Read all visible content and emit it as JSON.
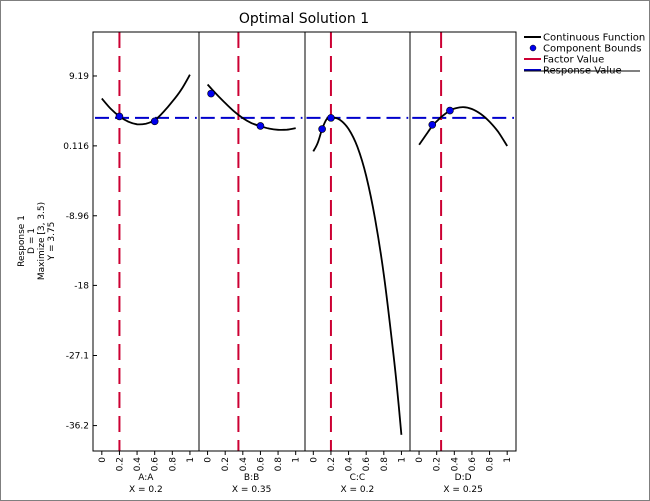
{
  "chart_data": {
    "type": "line",
    "title": "Optimal Solution 1",
    "ylabel_lines": [
      "Response 1",
      "D = 1",
      "Maximize [3, 3.5)",
      "Y = 3.75"
    ],
    "y_ticks": [
      9.19,
      0.116,
      -8.96,
      -18,
      -27.1,
      -36.2
    ],
    "y_tick_labels": [
      "9.19",
      "0.116",
      "-8.96",
      "-18",
      "-27.1",
      "-36.2"
    ],
    "ylim": [
      -39.5,
      14.9
    ],
    "x_ticks": [
      0,
      0.2,
      0.4,
      0.6,
      0.8,
      1
    ],
    "x_tick_labels": [
      "0",
      "0.2",
      "0.4",
      "0.6",
      "0.8",
      "1"
    ],
    "xlim": [
      -0.1,
      1.1
    ],
    "response_value": 3.75,
    "legend": [
      "Continuous Function",
      "Component Bounds",
      "Factor Value",
      "Response Value"
    ],
    "colors": {
      "function": "#000000",
      "bounds": "#0000ee",
      "factor": "#cc0033",
      "response": "#0000cc"
    },
    "panels": [
      {
        "name": "A:A",
        "x_label": "X = 0.2",
        "factor_value": 0.2,
        "curve_x": [
          0.0,
          0.1,
          0.2,
          0.3,
          0.4,
          0.5,
          0.6,
          0.7,
          0.8,
          0.9,
          1.0
        ],
        "curve_y": [
          6.26,
          4.95,
          3.94,
          3.26,
          2.92,
          3.0,
          3.44,
          4.52,
          5.86,
          7.38,
          9.36
        ],
        "bounds": [
          {
            "x": 0.2,
            "y": 3.94
          },
          {
            "x": 0.6,
            "y": 3.3
          }
        ]
      },
      {
        "name": "B:B",
        "x_label": "X = 0.35",
        "factor_value": 0.35,
        "curve_x": [
          0.0,
          0.1,
          0.2,
          0.3,
          0.4,
          0.5,
          0.6,
          0.7,
          0.8,
          0.9,
          1.0
        ],
        "curve_y": [
          8.08,
          6.84,
          5.68,
          4.6,
          3.72,
          3.06,
          2.67,
          2.36,
          2.2,
          2.22,
          2.42
        ],
        "bounds": [
          {
            "x": 0.04,
            "y": 6.9
          },
          {
            "x": 0.6,
            "y": 2.7
          }
        ]
      },
      {
        "name": "C:C",
        "x_label": "X = 0.2",
        "factor_value": 0.2,
        "curve_x": [
          0.0,
          0.05,
          0.1,
          0.15,
          0.2,
          0.3,
          0.4,
          0.5,
          0.6,
          0.7,
          0.8,
          0.9,
          0.95,
          1.0
        ],
        "curve_y": [
          -0.6,
          0.5,
          2.3,
          3.55,
          3.85,
          3.5,
          2.3,
          0.0,
          -3.8,
          -9.3,
          -16.6,
          -26.0,
          -31.3,
          -37.4
        ],
        "bounds": [
          {
            "x": 0.1,
            "y": 2.3
          },
          {
            "x": 0.2,
            "y": 3.75
          }
        ]
      },
      {
        "name": "D:D",
        "x_label": "X = 0.25",
        "factor_value": 0.25,
        "curve_x": [
          0.0,
          0.1,
          0.15,
          0.2,
          0.25,
          0.3,
          0.35,
          0.4,
          0.5,
          0.6,
          0.7,
          0.8,
          0.9,
          1.0
        ],
        "curve_y": [
          0.25,
          1.9,
          2.7,
          3.3,
          3.85,
          4.3,
          4.7,
          4.95,
          5.15,
          4.9,
          4.25,
          3.25,
          1.9,
          0.1
        ],
        "bounds": [
          {
            "x": 0.15,
            "y": 2.85
          },
          {
            "x": 0.35,
            "y": 4.7
          }
        ]
      }
    ]
  }
}
